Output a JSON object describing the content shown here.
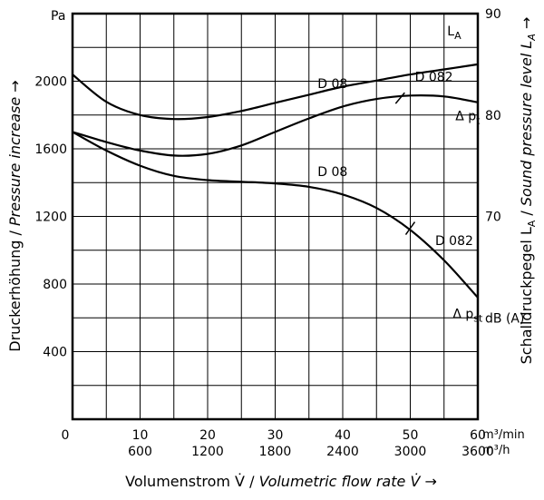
{
  "chart_data": {
    "type": "line",
    "left_axis": {
      "unit": "Pa",
      "ticks": [
        400,
        800,
        1200,
        1600,
        2000
      ],
      "range": [
        0,
        2400
      ],
      "label_parts": [
        "Druckerhöhung / ",
        "Pressure increase",
        " →"
      ]
    },
    "right_axis": {
      "ticks": [
        70,
        80,
        90
      ],
      "range": [
        50,
        90
      ],
      "label_parts": [
        "Schalldruckpegel L",
        "A",
        " / ",
        "Sound pressure level L",
        "A",
        " →"
      ],
      "unit_label": "dB (A)"
    },
    "x_axis": {
      "range": [
        0,
        60
      ],
      "zero_label": "0",
      "ticks_m3min": [
        10,
        20,
        30,
        40,
        50,
        60
      ],
      "ticks_m3h": [
        600,
        1200,
        1800,
        2400,
        3000,
        3600
      ],
      "unit_m3min": "m³/min",
      "unit_m3h": "m³/h",
      "label_parts": [
        "Volumenstrom V̇ / ",
        "Volumetric flow rate V̇",
        "  →"
      ]
    },
    "grid": true,
    "series": [
      {
        "name": "L_A",
        "axis": "right",
        "x": [
          0,
          5,
          10,
          15,
          20,
          25,
          30,
          35,
          40,
          45,
          50,
          55,
          60
        ],
        "y": [
          84.0,
          81.3,
          80.0,
          79.6,
          79.8,
          80.4,
          81.2,
          82.0,
          82.8,
          83.4,
          84.0,
          84.5,
          85.0
        ]
      },
      {
        "name": "Δ p_t",
        "axis": "left",
        "x": [
          0,
          5,
          10,
          15,
          20,
          25,
          30,
          35,
          40,
          45,
          50,
          55,
          60
        ],
        "y": [
          1700,
          1640,
          1590,
          1560,
          1570,
          1620,
          1700,
          1780,
          1850,
          1895,
          1915,
          1910,
          1875
        ]
      },
      {
        "name": "Δ p_st",
        "axis": "left",
        "x": [
          0,
          5,
          10,
          15,
          20,
          25,
          30,
          35,
          40,
          45,
          50,
          55,
          60
        ],
        "y": [
          1700,
          1590,
          1500,
          1440,
          1415,
          1405,
          1395,
          1375,
          1330,
          1250,
          1120,
          940,
          720
        ]
      }
    ],
    "annotations": [
      {
        "text": "L",
        "sub": "A",
        "x": 56.5,
        "y": 2270,
        "axis": "left"
      },
      {
        "text": "D 08",
        "x": 38.5,
        "y": 1960,
        "axis": "left"
      },
      {
        "text": "D 082",
        "x": 53.5,
        "y": 2000,
        "axis": "left"
      },
      {
        "text": "Δ p",
        "sub": "t",
        "x": 58.5,
        "y": 1770,
        "axis": "left"
      },
      {
        "text": "D 08",
        "x": 38.5,
        "y": 1440,
        "axis": "left"
      },
      {
        "text": "D 082",
        "x": 56.5,
        "y": 1030,
        "axis": "left"
      },
      {
        "text": "Δ p",
        "sub": "st",
        "x": 58.5,
        "y": 600,
        "axis": "left"
      }
    ]
  }
}
